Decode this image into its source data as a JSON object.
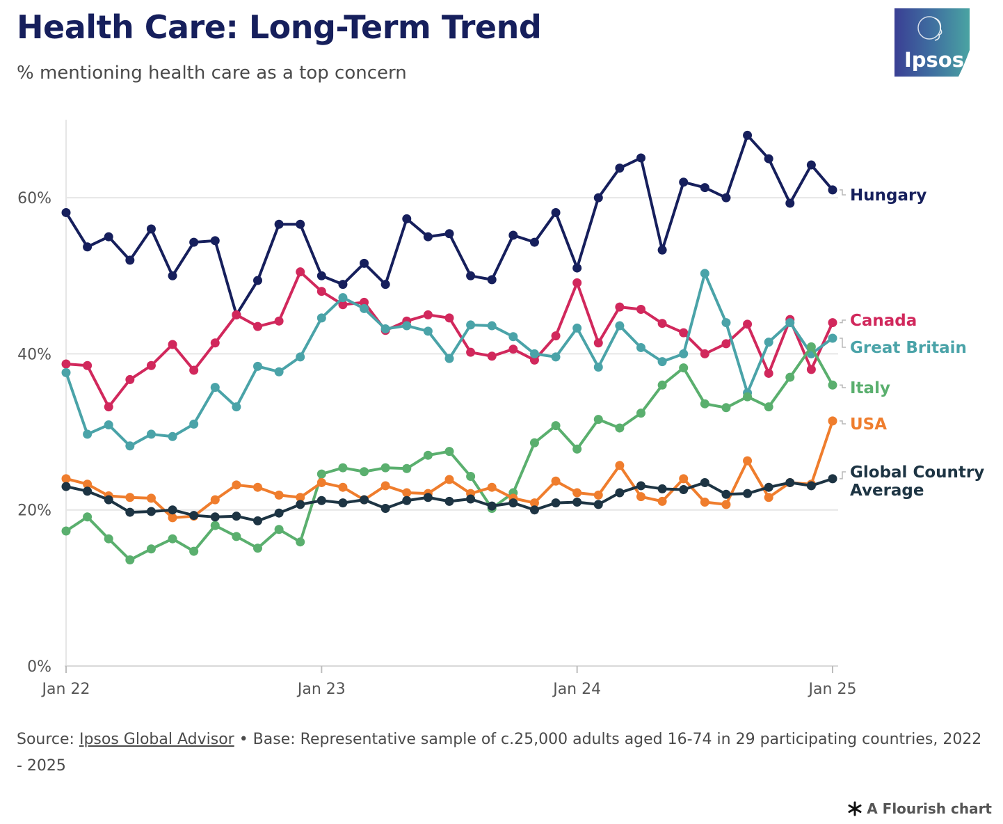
{
  "header": {
    "title": "Health Care: Long-Term Trend",
    "subtitle": "% mentioning health care as a top concern"
  },
  "logo": {
    "text": "Ipsos",
    "colors": [
      "#3a3f94",
      "#4aa3a2"
    ]
  },
  "footer": {
    "source_prefix": "Source: ",
    "source_link": "Ipsos Global Advisor",
    "source_rest": " • Base: Representative sample of c.25,000 adults aged 16-74 in 29 participating countries, 2022 - 2025"
  },
  "credit": {
    "text": "A Flourish chart",
    "icon": "flourish-asterisk-icon"
  },
  "chart_data": {
    "type": "line",
    "title": "Health Care: Long-Term Trend",
    "subtitle": "% mentioning health care as a top concern",
    "x_start": "Jan 22",
    "x_end": "Jan 25",
    "x_ticks": [
      {
        "label": "Jan 22",
        "month_index": 0
      },
      {
        "label": "Jan 23",
        "month_index": 12
      },
      {
        "label": "Jan 24",
        "month_index": 24
      },
      {
        "label": "Jan 25",
        "month_index": 36
      }
    ],
    "y_ticks": [
      {
        "label": "0%",
        "value": 0
      },
      {
        "label": "20%",
        "value": 20
      },
      {
        "label": "40%",
        "value": 40
      },
      {
        "label": "60%",
        "value": 60
      }
    ],
    "ylim": [
      0,
      70
    ],
    "grid": "horizontal",
    "legend": "direct-labels-right",
    "series": [
      {
        "name": "Hungary",
        "color": "#161f5c",
        "values": [
          58.1,
          53.7,
          55.0,
          52.0,
          56.0,
          50.0,
          54.3,
          54.5,
          45.0,
          49.4,
          56.6,
          56.6,
          50.0,
          48.9,
          51.6,
          48.9,
          57.3,
          55.0,
          55.4,
          50.0,
          49.5,
          55.2,
          54.3,
          58.1,
          51.0,
          60.0,
          63.8,
          65.1,
          53.3,
          62.0,
          61.3,
          60.0,
          68.0,
          65.0,
          59.3,
          64.2,
          61.0
        ]
      },
      {
        "name": "Canada",
        "color": "#d1285c",
        "values": [
          38.7,
          38.5,
          33.2,
          36.7,
          38.5,
          41.2,
          37.9,
          41.4,
          45.0,
          43.5,
          44.2,
          50.5,
          48.0,
          46.3,
          46.6,
          43.0,
          44.2,
          45.0,
          44.6,
          40.2,
          39.7,
          40.6,
          39.2,
          42.3,
          49.1,
          41.4,
          46.0,
          45.7,
          43.9,
          42.7,
          40.0,
          41.3,
          43.8,
          37.5,
          44.4,
          38.0,
          44.0
        ]
      },
      {
        "name": "Great Britain",
        "color": "#4aa3a8",
        "values": [
          37.6,
          29.7,
          30.9,
          28.2,
          29.7,
          29.4,
          31.0,
          35.7,
          33.2,
          38.4,
          37.7,
          39.6,
          44.6,
          47.2,
          45.8,
          43.2,
          43.6,
          42.9,
          39.4,
          43.7,
          43.6,
          42.2,
          40.0,
          39.6,
          43.3,
          38.3,
          43.6,
          40.8,
          39.0,
          40.0,
          50.3,
          44.0,
          35.0,
          41.5,
          44.0,
          40.0,
          42.0
        ]
      },
      {
        "name": "Italy",
        "color": "#5aaf6e",
        "values": [
          17.3,
          19.1,
          16.3,
          13.6,
          15.0,
          16.3,
          14.7,
          18.0,
          16.6,
          15.1,
          17.5,
          15.9,
          24.6,
          25.4,
          24.9,
          25.4,
          25.3,
          27.0,
          27.5,
          24.3,
          20.2,
          22.2,
          28.6,
          30.8,
          27.8,
          31.6,
          30.5,
          32.4,
          36.0,
          38.2,
          33.6,
          33.1,
          34.5,
          33.2,
          37.0,
          40.9,
          36.0
        ]
      },
      {
        "name": "USA",
        "color": "#ef7d2d",
        "values": [
          24.0,
          23.3,
          21.8,
          21.6,
          21.5,
          19.0,
          19.2,
          21.3,
          23.2,
          22.9,
          21.9,
          21.6,
          23.5,
          22.9,
          21.3,
          23.1,
          22.2,
          22.1,
          23.9,
          22.1,
          22.9,
          21.5,
          20.9,
          23.7,
          22.2,
          21.9,
          25.7,
          21.7,
          21.1,
          24.0,
          21.0,
          20.7,
          26.3,
          21.6,
          23.5,
          23.3,
          31.4
        ]
      },
      {
        "name": "Global Country Average",
        "label_lines": [
          "Global Country",
          "Average"
        ],
        "color": "#1d3443",
        "values": [
          23.0,
          22.4,
          21.3,
          19.7,
          19.8,
          20.0,
          19.3,
          19.1,
          19.2,
          18.6,
          19.6,
          20.7,
          21.2,
          20.9,
          21.3,
          20.2,
          21.2,
          21.6,
          21.1,
          21.4,
          20.5,
          20.9,
          20.0,
          20.9,
          21.0,
          20.7,
          22.2,
          23.1,
          22.7,
          22.6,
          23.5,
          22.0,
          22.1,
          22.9,
          23.5,
          23.1,
          24.0
        ]
      }
    ]
  }
}
